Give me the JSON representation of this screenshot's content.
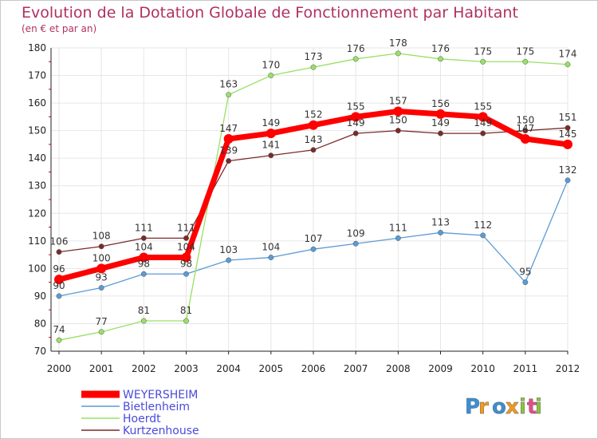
{
  "chart_data": {
    "type": "line",
    "title": "Evolution de la Dotation Globale de Fonctionnement par Habitant",
    "subtitle": "(en € et par an)",
    "xlabel": "",
    "ylabel": "",
    "ylim": [
      70,
      180
    ],
    "yticks": [
      70,
      80,
      90,
      100,
      110,
      120,
      130,
      140,
      150,
      160,
      170,
      180
    ],
    "x": [
      "2000",
      "2001",
      "2002",
      "2003",
      "2004",
      "2005",
      "2006",
      "2007",
      "2008",
      "2009",
      "2010",
      "2011",
      "2012"
    ],
    "grid": true,
    "legend_position": "bottom-left",
    "series": [
      {
        "name": "Bietlenheim",
        "color": "#5b9bd5",
        "values": [
          90,
          93,
          98,
          98,
          103,
          104,
          107,
          109,
          111,
          113,
          112,
          95,
          132
        ]
      },
      {
        "name": "Hoerdt",
        "color": "#99e066",
        "values": [
          74,
          77,
          81,
          81,
          163,
          170,
          173,
          176,
          178,
          176,
          175,
          175,
          174
        ]
      },
      {
        "name": "Kurtzenhouse",
        "color": "#7a2a2a",
        "values": [
          106,
          108,
          111,
          111,
          139,
          141,
          143,
          149,
          150,
          149,
          149,
          150,
          151
        ]
      },
      {
        "name": "WEYERSHEIM",
        "color": "#ff0000",
        "values": [
          96,
          100,
          104,
          104,
          147,
          149,
          152,
          155,
          157,
          156,
          155,
          147,
          145
        ]
      }
    ],
    "legend_order": [
      "WEYERSHEIM",
      "Bietlenheim",
      "Hoerdt",
      "Kurtzenhouse"
    ]
  },
  "branding": {
    "logo_text": "Proxiti",
    "logo_colors": [
      "#3a8fd6",
      "#f39a1e",
      "#3a8fd6",
      "#f39a1e",
      "#8bc43f",
      "#e64b8a",
      "#8bc43f"
    ]
  },
  "colors": {
    "title": "#b03060",
    "axis": "#222222",
    "grid": "#e6e6e6",
    "tick_text": "#222222",
    "label_text": "#333333",
    "legend_text": "#4a4adb"
  }
}
